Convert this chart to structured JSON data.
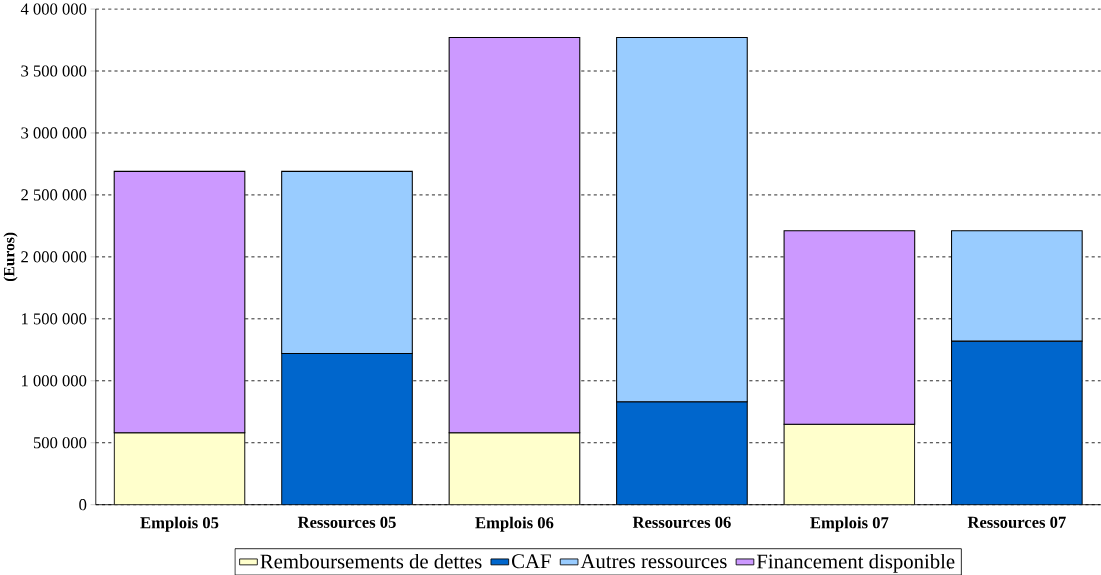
{
  "chart_data": {
    "type": "bar",
    "stacked": true,
    "ylabel": "(Euros)",
    "categories": [
      "Emplois 05",
      "Ressources 05",
      "Emplois 06",
      "Ressources 06",
      "Emplois 07",
      "Ressources 07"
    ],
    "series": [
      {
        "name": "Remboursements de dettes",
        "color": "#ffffcc",
        "values": [
          580000,
          null,
          580000,
          null,
          650000,
          null
        ]
      },
      {
        "name": "CAF",
        "color": "#0066cc",
        "values": [
          null,
          1220000,
          null,
          830000,
          null,
          1320000
        ]
      },
      {
        "name": "Autres ressources",
        "color": "#99ccff",
        "values": [
          null,
          1470000,
          null,
          2940000,
          null,
          890000
        ]
      },
      {
        "name": "Financement disponible",
        "color": "#cc99ff",
        "values": [
          2110000,
          null,
          3190000,
          null,
          1560000,
          null
        ]
      }
    ],
    "ylim": [
      0,
      4000000
    ],
    "yticks": [
      0,
      {
        "value": 500000,
        "label": "500 000"
      },
      {
        "value": 1000000,
        "label": "1 000 000"
      },
      {
        "value": 1500000,
        "label": "1 500 000"
      },
      {
        "value": 2000000,
        "label": "2 000 000"
      },
      {
        "value": 2500000,
        "label": "2 500 000"
      },
      {
        "value": 3000000,
        "label": "3 000 000"
      },
      {
        "value": 3500000,
        "label": "3 500 000"
      },
      {
        "value": 4000000,
        "label": "4 000 000"
      }
    ],
    "grid": "y",
    "legend": "bottom"
  }
}
